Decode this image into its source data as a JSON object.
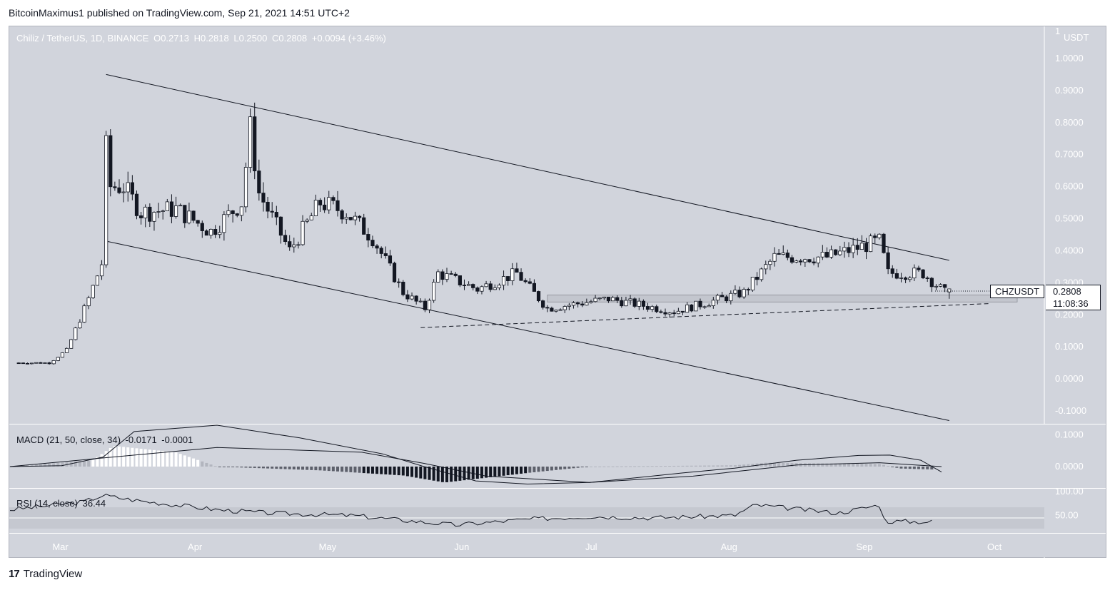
{
  "header": {
    "publisher": "BitcoinMaximus1 published on TradingView.com, Sep 21, 2021 14:51 UTC+2"
  },
  "footer": {
    "brand": "TradingView",
    "logo": "17"
  },
  "legend": {
    "symbol": "Chiliz / TetherUS, 1D, BINANCE",
    "open_label": "O",
    "open": "0.2713",
    "high_label": "H",
    "high": "0.2818",
    "low_label": "L",
    "low": "0.2500",
    "close_label": "C",
    "close": "0.2808",
    "change": "+0.0094 (+3.46%)"
  },
  "macd_legend": {
    "label": "MACD (21, 50, close, 34)",
    "macd": "-0.0171",
    "signal": "-0.0001"
  },
  "rsi_legend": {
    "label": "RSI (14, close)",
    "value": "36.44"
  },
  "price_tag": {
    "symbol": "CHZUSDT",
    "price": "0.2808",
    "countdown": "11:08:36"
  },
  "colors": {
    "background": "#d1d4dc",
    "candle_up": "#ffffff",
    "candle_down": "#131722",
    "line": "#131722",
    "rsi_band": "#e0e3eb"
  },
  "chart_data": [
    {
      "type": "candlestick",
      "title": "Chiliz / TetherUS, 1D, BINANCE",
      "price_axis_unit": "USDT",
      "y_ticks": [
        "1",
        "1.0000",
        "0.9000",
        "0.8000",
        "0.7000",
        "0.6000",
        "0.5000",
        "0.4000",
        "0.3000",
        "0.2000",
        "0.1000",
        "0.0000",
        "-0.1000"
      ],
      "ylim": [
        -0.14,
        1.1
      ],
      "x_ticks": [
        "Mar",
        "Apr",
        "May",
        "Jun",
        "Jul",
        "Aug",
        "Sep",
        "Oct"
      ],
      "last_close": 0.2808,
      "candles_close_path": [
        {
          "date": "2021-02-20",
          "close": 0.05
        },
        {
          "date": "2021-02-27",
          "close": 0.05
        },
        {
          "date": "2021-03-03",
          "close": 0.09
        },
        {
          "date": "2021-03-08",
          "close": 0.25
        },
        {
          "date": "2021-03-11",
          "close": 0.36
        },
        {
          "date": "2021-03-12",
          "close": 0.72
        },
        {
          "date": "2021-03-13",
          "close": 0.6
        },
        {
          "date": "2021-03-16",
          "close": 0.6
        },
        {
          "date": "2021-03-20",
          "close": 0.52
        },
        {
          "date": "2021-03-28",
          "close": 0.53
        },
        {
          "date": "2021-04-05",
          "close": 0.46
        },
        {
          "date": "2021-04-12",
          "close": 0.55
        },
        {
          "date": "2021-04-14",
          "close": 0.78
        },
        {
          "date": "2021-04-16",
          "close": 0.58
        },
        {
          "date": "2021-04-23",
          "close": 0.4
        },
        {
          "date": "2021-04-30",
          "close": 0.55
        },
        {
          "date": "2021-05-06",
          "close": 0.52
        },
        {
          "date": "2021-05-12",
          "close": 0.44
        },
        {
          "date": "2021-05-19",
          "close": 0.27
        },
        {
          "date": "2021-05-24",
          "close": 0.22
        },
        {
          "date": "2021-05-27",
          "close": 0.33
        },
        {
          "date": "2021-06-05",
          "close": 0.28
        },
        {
          "date": "2021-06-14",
          "close": 0.33
        },
        {
          "date": "2021-06-21",
          "close": 0.22
        },
        {
          "date": "2021-07-05",
          "close": 0.25
        },
        {
          "date": "2021-07-20",
          "close": 0.21
        },
        {
          "date": "2021-08-05",
          "close": 0.27
        },
        {
          "date": "2021-08-12",
          "close": 0.38
        },
        {
          "date": "2021-08-24",
          "close": 0.38
        },
        {
          "date": "2021-09-05",
          "close": 0.43
        },
        {
          "date": "2021-09-07",
          "close": 0.33
        },
        {
          "date": "2021-09-15",
          "close": 0.33
        },
        {
          "date": "2021-09-20",
          "close": 0.27
        },
        {
          "date": "2021-09-21",
          "close": 0.2808
        }
      ],
      "trendlines": [
        {
          "name": "descending-channel-upper",
          "from": {
            "date": "2021-03-12",
            "price": 0.95
          },
          "to": {
            "date": "2021-09-21",
            "price": 0.37
          }
        },
        {
          "name": "descending-channel-lower",
          "from": {
            "date": "2021-03-12",
            "price": 0.43
          },
          "to": {
            "date": "2021-09-21",
            "price": -0.13
          }
        },
        {
          "name": "ascending-support-dashed",
          "from": {
            "date": "2021-05-23",
            "price": 0.16
          },
          "to": {
            "date": "2021-09-30",
            "price": 0.235
          }
        }
      ],
      "support_zone": {
        "from": 0.24,
        "to": 0.262
      }
    },
    {
      "type": "macd",
      "title": "MACD (21, 50, close, 34)",
      "y_ticks": [
        "0.1000",
        "0.0000"
      ],
      "ylim": [
        -0.065,
        0.13
      ],
      "macd_last": -0.0171,
      "signal_last": -0.0001
    },
    {
      "type": "rsi",
      "title": "RSI (14, close)",
      "y_ticks": [
        "100.00",
        "50.00"
      ],
      "ylim": [
        0,
        100
      ],
      "last": 36.44
    }
  ]
}
